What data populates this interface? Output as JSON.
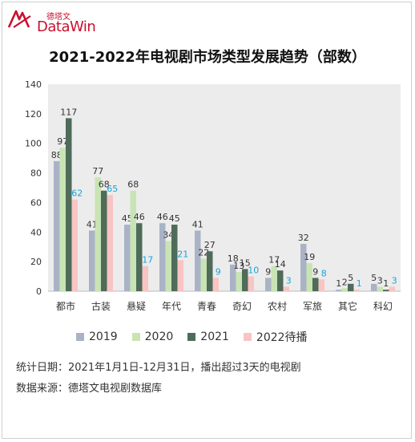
{
  "brand": {
    "cn": "德塔文",
    "en": "DataWin",
    "color": "#c8102e"
  },
  "footnotes": {
    "stat_date": "统计日期：2021年1月1日-12月31日，播出超过3天的电视剧",
    "source": "数据来源：德塔文电视剧数据库"
  },
  "chart_data": {
    "type": "bar",
    "title": "2021-2022年电视剧市场类型发展趋势（部数）",
    "xlabel": "",
    "ylabel": "",
    "ylim": [
      0,
      140
    ],
    "yticks": [
      0,
      20,
      40,
      60,
      80,
      100,
      120,
      140
    ],
    "grid": false,
    "legend": "bottom",
    "categories": [
      "都市",
      "古装",
      "悬疑",
      "年代",
      "青春",
      "奇幻",
      "农村",
      "军旅",
      "其它",
      "科幻"
    ],
    "series": [
      {
        "name": "2019",
        "color": "#aab3c6",
        "label_color": "#333333",
        "values": [
          88,
          41,
          45,
          46,
          41,
          18,
          9,
          32,
          1,
          5
        ]
      },
      {
        "name": "2020",
        "color": "#c9e4b4",
        "label_color": "#333333",
        "values": [
          97,
          77,
          68,
          34,
          22,
          13,
          17,
          19,
          2,
          3
        ]
      },
      {
        "name": "2021",
        "color": "#4f6b5a",
        "label_color": "#333333",
        "values": [
          117,
          68,
          46,
          45,
          27,
          15,
          14,
          9,
          5,
          1
        ]
      },
      {
        "name": "2022待播",
        "color": "#f9c4c4",
        "label_color": "#1aa3d9",
        "values": [
          62,
          65,
          17,
          21,
          9,
          10,
          3,
          8,
          1,
          3
        ]
      }
    ]
  }
}
